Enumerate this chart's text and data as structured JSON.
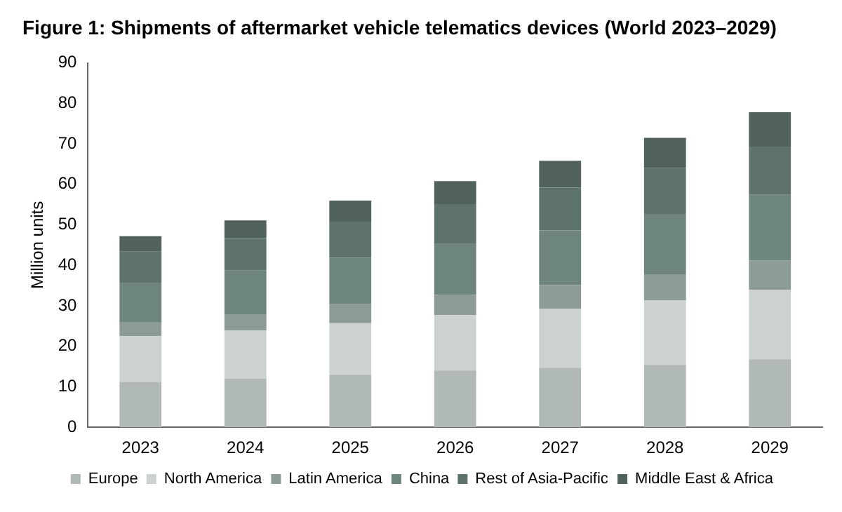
{
  "chart_data": {
    "type": "bar",
    "title": "Figure 1: Shipments of aftermarket vehicle telematics devices (World 2023–2029)",
    "ylabel": "Million units",
    "categories": [
      "2023",
      "2024",
      "2025",
      "2026",
      "2027",
      "2028",
      "2029"
    ],
    "stacked": true,
    "ylim": [
      0,
      90
    ],
    "yticks": [
      0,
      10,
      20,
      30,
      40,
      50,
      60,
      70,
      80,
      90
    ],
    "grid": false,
    "legend": "bottom",
    "series": [
      {
        "name": "Europe",
        "color": "#b0b9b5",
        "values": [
          11.2,
          12.0,
          13.0,
          14.0,
          14.7,
          15.4,
          16.8
        ]
      },
      {
        "name": "North America",
        "color": "#cbd2d0",
        "values": [
          11.3,
          11.9,
          12.7,
          13.7,
          14.6,
          16.0,
          17.2
        ]
      },
      {
        "name": "Latin America",
        "color": "#8c9c94",
        "values": [
          3.5,
          4.0,
          4.7,
          5.0,
          5.8,
          6.4,
          7.2
        ]
      },
      {
        "name": "China",
        "color": "#6e857c",
        "values": [
          9.7,
          10.8,
          11.5,
          12.7,
          13.5,
          14.9,
          16.2
        ]
      },
      {
        "name": "Rest of Asia-Pacific",
        "color": "#5e746b",
        "values": [
          7.7,
          8.0,
          8.9,
          9.7,
          10.6,
          11.4,
          11.9
        ]
      },
      {
        "name": "Middle East & Africa",
        "color": "#506259",
        "values": [
          3.8,
          4.4,
          5.2,
          5.7,
          6.6,
          7.4,
          8.5
        ]
      }
    ]
  }
}
